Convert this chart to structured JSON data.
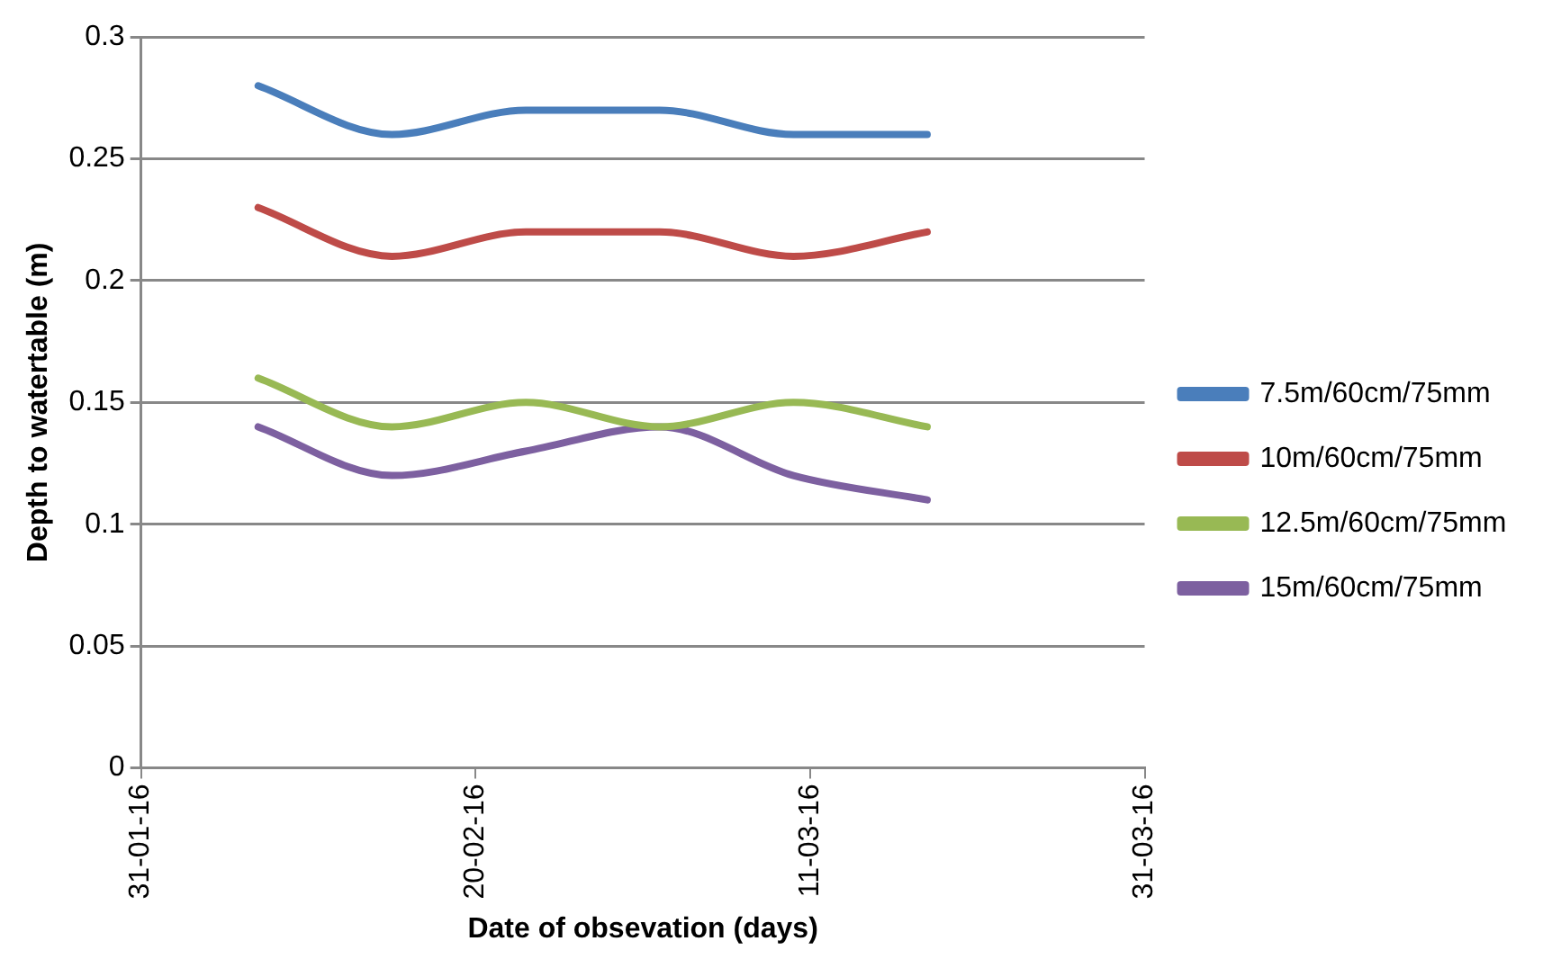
{
  "chart_data": {
    "type": "line",
    "xlabel": "Date of obsevation (days)",
    "ylabel": "Depth to watertable (m)",
    "x": [
      "2016-02-07",
      "2016-02-15",
      "2016-02-23",
      "2016-03-02",
      "2016-03-10",
      "2016-03-18"
    ],
    "series": [
      {
        "name": "7.5m/60cm/75mm",
        "color": "#4a7ebb",
        "values": [
          0.28,
          0.26,
          0.27,
          0.27,
          0.26,
          0.26
        ]
      },
      {
        "name": "10m/60cm/75mm",
        "color": "#be4b48",
        "values": [
          0.23,
          0.21,
          0.22,
          0.22,
          0.21,
          0.22
        ]
      },
      {
        "name": "12.5m/60cm/75mm",
        "color": "#98b954",
        "values": [
          0.16,
          0.14,
          0.15,
          0.14,
          0.15,
          0.14
        ]
      },
      {
        "name": "15m/60cm/75mm",
        "color": "#7d60a0",
        "values": [
          0.14,
          0.12,
          0.13,
          0.14,
          0.12,
          0.11
        ]
      }
    ],
    "xlim": [
      "2016-01-31",
      "2016-03-31"
    ],
    "xticks": [
      {
        "value": "2016-01-31",
        "label": "31-01-16"
      },
      {
        "value": "2016-02-20",
        "label": "20-02-16"
      },
      {
        "value": "2016-03-11",
        "label": "11-03-16"
      },
      {
        "value": "2016-03-31",
        "label": "31-03-16"
      }
    ],
    "ylim": [
      0,
      0.3
    ],
    "yticks": [
      0,
      0.05,
      0.1,
      0.15,
      0.2,
      0.25,
      0.3
    ],
    "grid": "y",
    "legend": "right",
    "marker": "none",
    "line_style": "solid"
  }
}
